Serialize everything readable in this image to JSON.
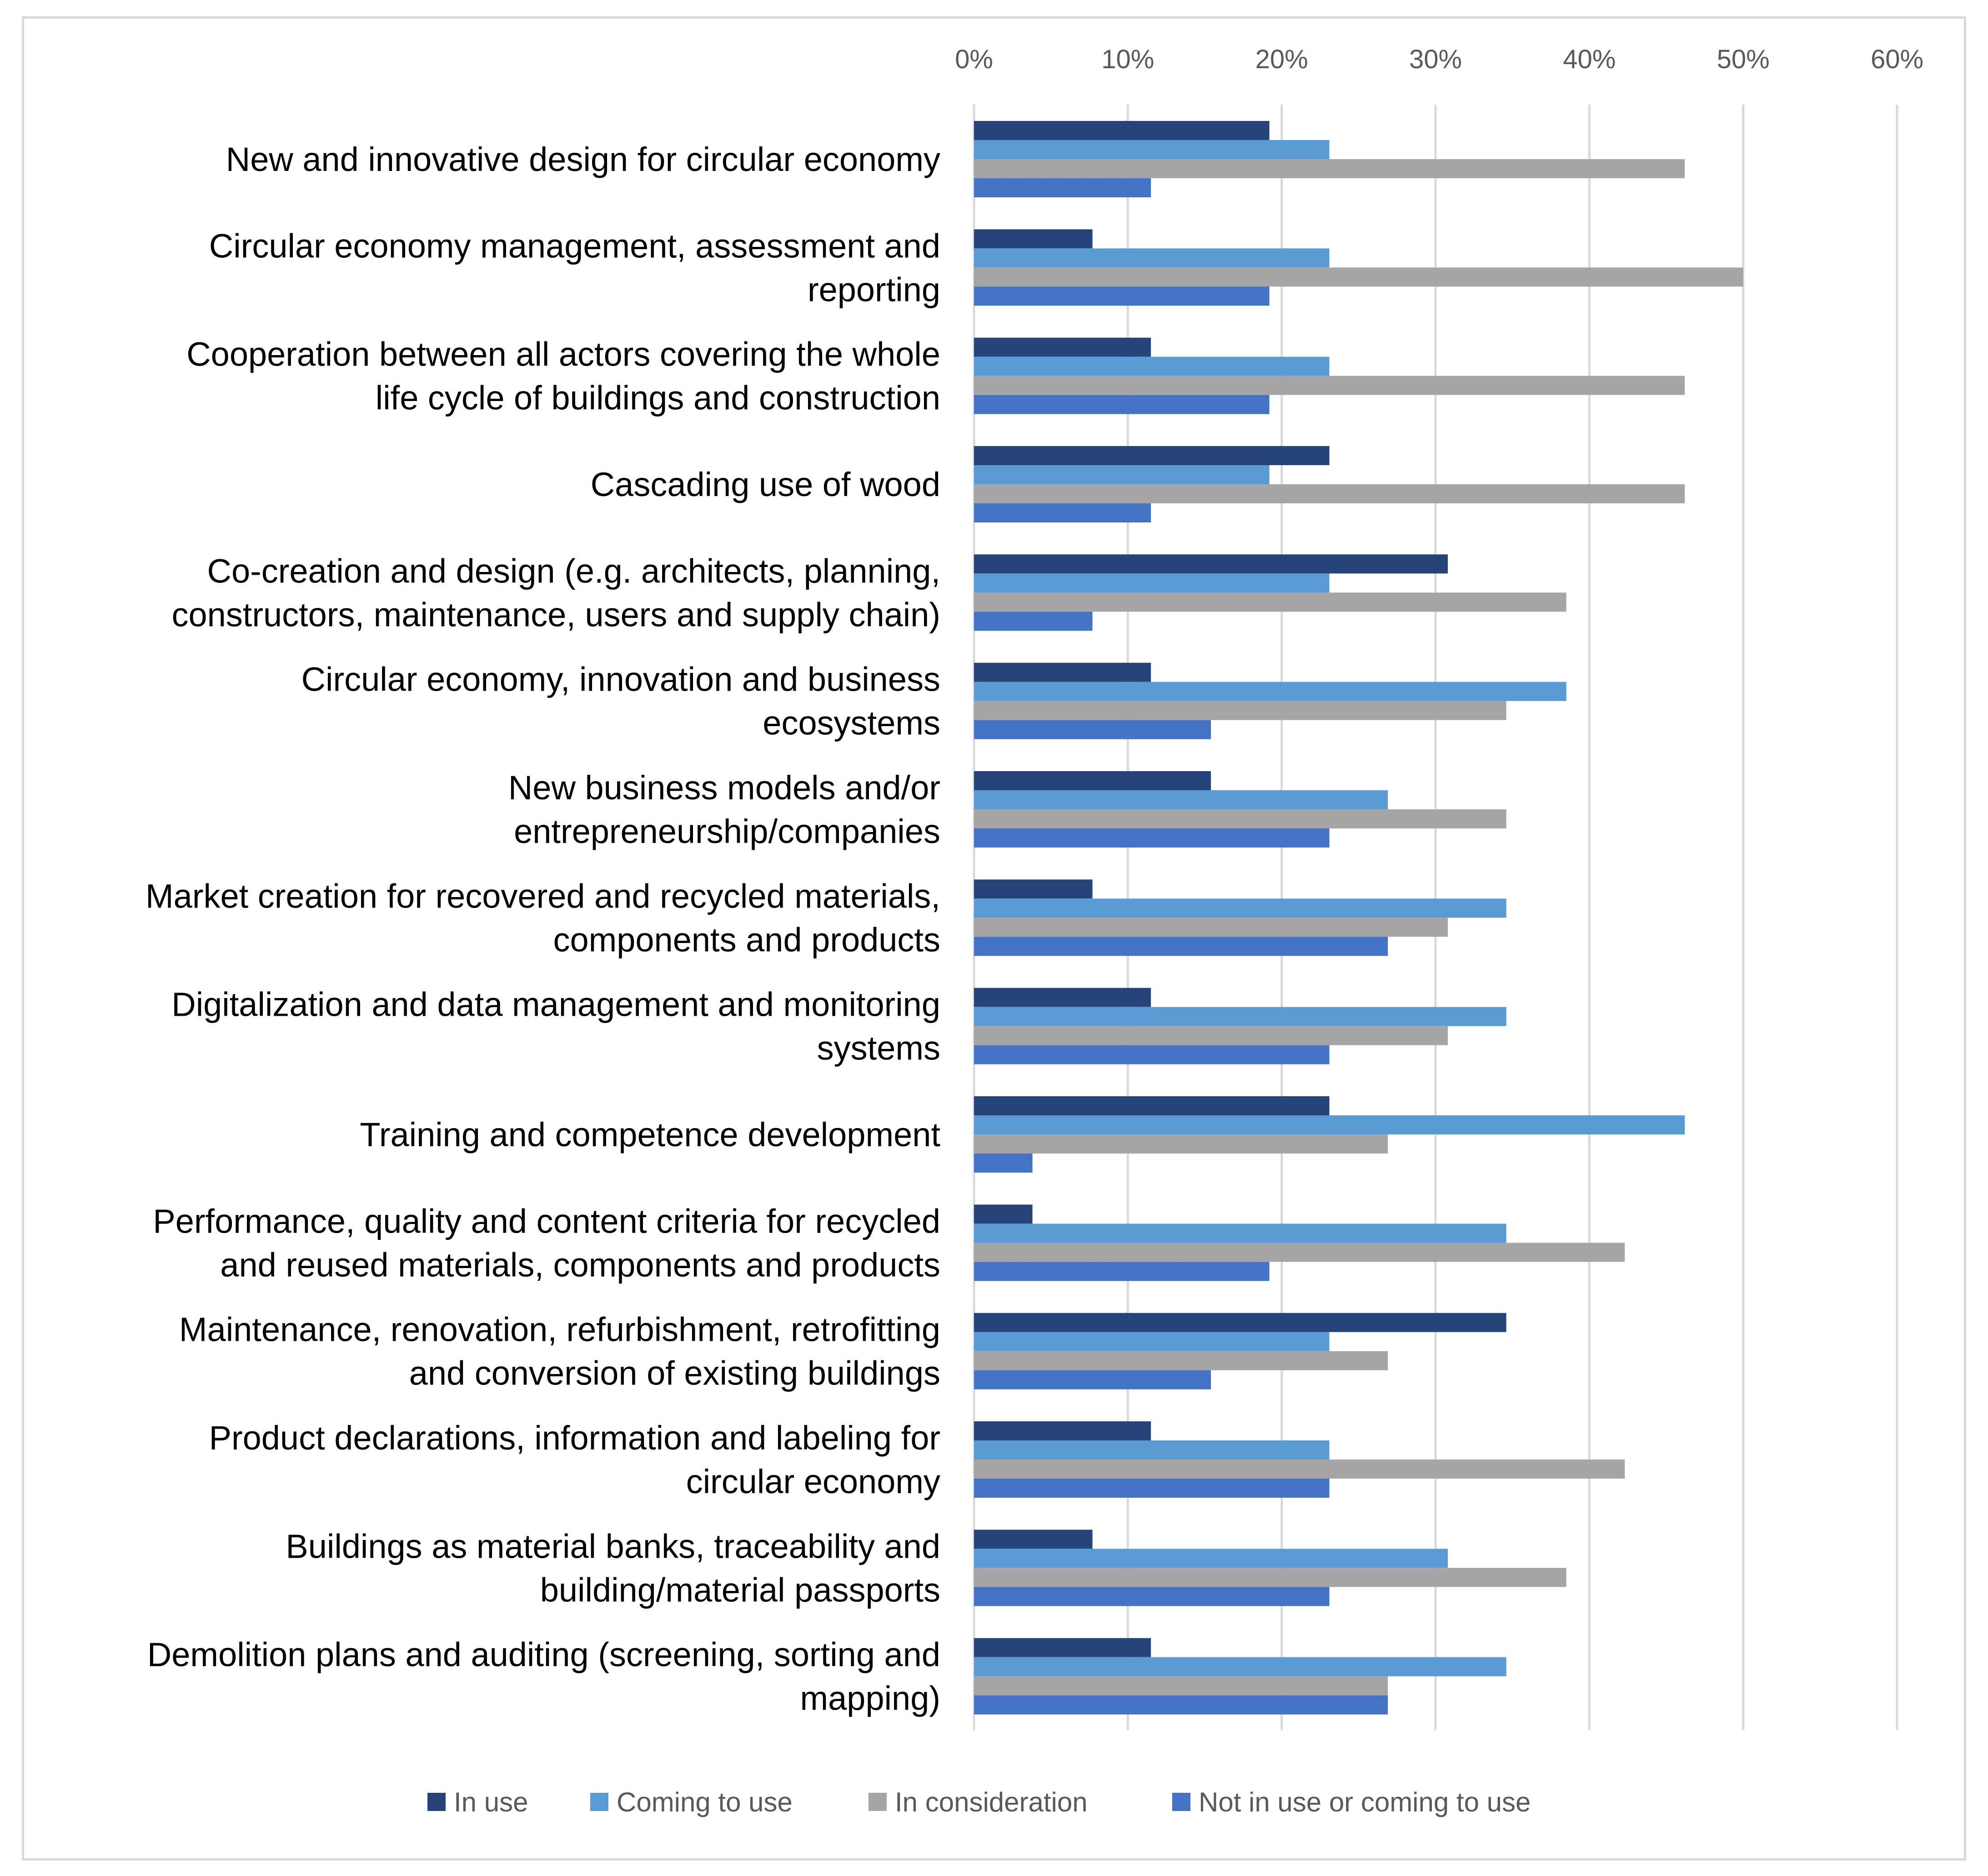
{
  "chart_data": {
    "type": "bar",
    "orientation": "horizontal",
    "title": "",
    "xlabel": "",
    "ylabel": "",
    "xlim": [
      0,
      60
    ],
    "x_ticks": [
      "0%",
      "10%",
      "20%",
      "30%",
      "40%",
      "50%",
      "60%"
    ],
    "grid": true,
    "legend_position": "bottom",
    "categories": [
      [
        "New and innovative design for circular economy"
      ],
      [
        "Circular economy management, assessment and",
        "reporting"
      ],
      [
        "Cooperation between all actors covering the whole",
        "life cycle of buildings and construction"
      ],
      [
        "Cascading use of wood"
      ],
      [
        "Co-creation and design (e.g. architects, planning,",
        "constructors, maintenance, users and supply chain)"
      ],
      [
        "Circular economy, innovation and business",
        "ecosystems"
      ],
      [
        "New business models and/or",
        "entrepreneurship/companies"
      ],
      [
        "Market creation for recovered and recycled materials,",
        "components and products"
      ],
      [
        "Digitalization and data management and monitoring",
        "systems"
      ],
      [
        "Training and competence development"
      ],
      [
        "Performance, quality and content criteria for recycled",
        "and reused materials, components and products"
      ],
      [
        "Maintenance, renovation, refurbishment, retrofitting",
        "and conversion of existing buildings"
      ],
      [
        "Product declarations, information and labeling for",
        "circular economy"
      ],
      [
        "Buildings as material banks, traceability and",
        "building/material passports"
      ],
      [
        "Demolition plans and auditing (screening, sorting and",
        "mapping)"
      ]
    ],
    "series": [
      {
        "name": "In use",
        "color": "#264478",
        "values": [
          19.2,
          7.7,
          11.5,
          23.1,
          30.8,
          11.5,
          15.4,
          7.7,
          11.5,
          23.1,
          3.8,
          34.6,
          11.5,
          7.7,
          11.5
        ]
      },
      {
        "name": "Coming to use",
        "color": "#5b9bd5",
        "values": [
          23.1,
          23.1,
          23.1,
          19.2,
          23.1,
          38.5,
          26.9,
          34.6,
          34.6,
          46.2,
          34.6,
          23.1,
          23.1,
          30.8,
          34.6
        ]
      },
      {
        "name": "In consideration",
        "color": "#a5a5a5",
        "values": [
          46.2,
          50.0,
          46.2,
          46.2,
          38.5,
          34.6,
          34.6,
          30.8,
          30.8,
          26.9,
          42.3,
          26.9,
          42.3,
          38.5,
          26.9
        ]
      },
      {
        "name": "Not in use or coming to use",
        "color": "#4472c4",
        "values": [
          11.5,
          19.2,
          19.2,
          11.5,
          7.7,
          15.4,
          23.1,
          26.9,
          23.1,
          3.8,
          19.2,
          15.4,
          23.1,
          23.1,
          26.9
        ]
      }
    ]
  }
}
